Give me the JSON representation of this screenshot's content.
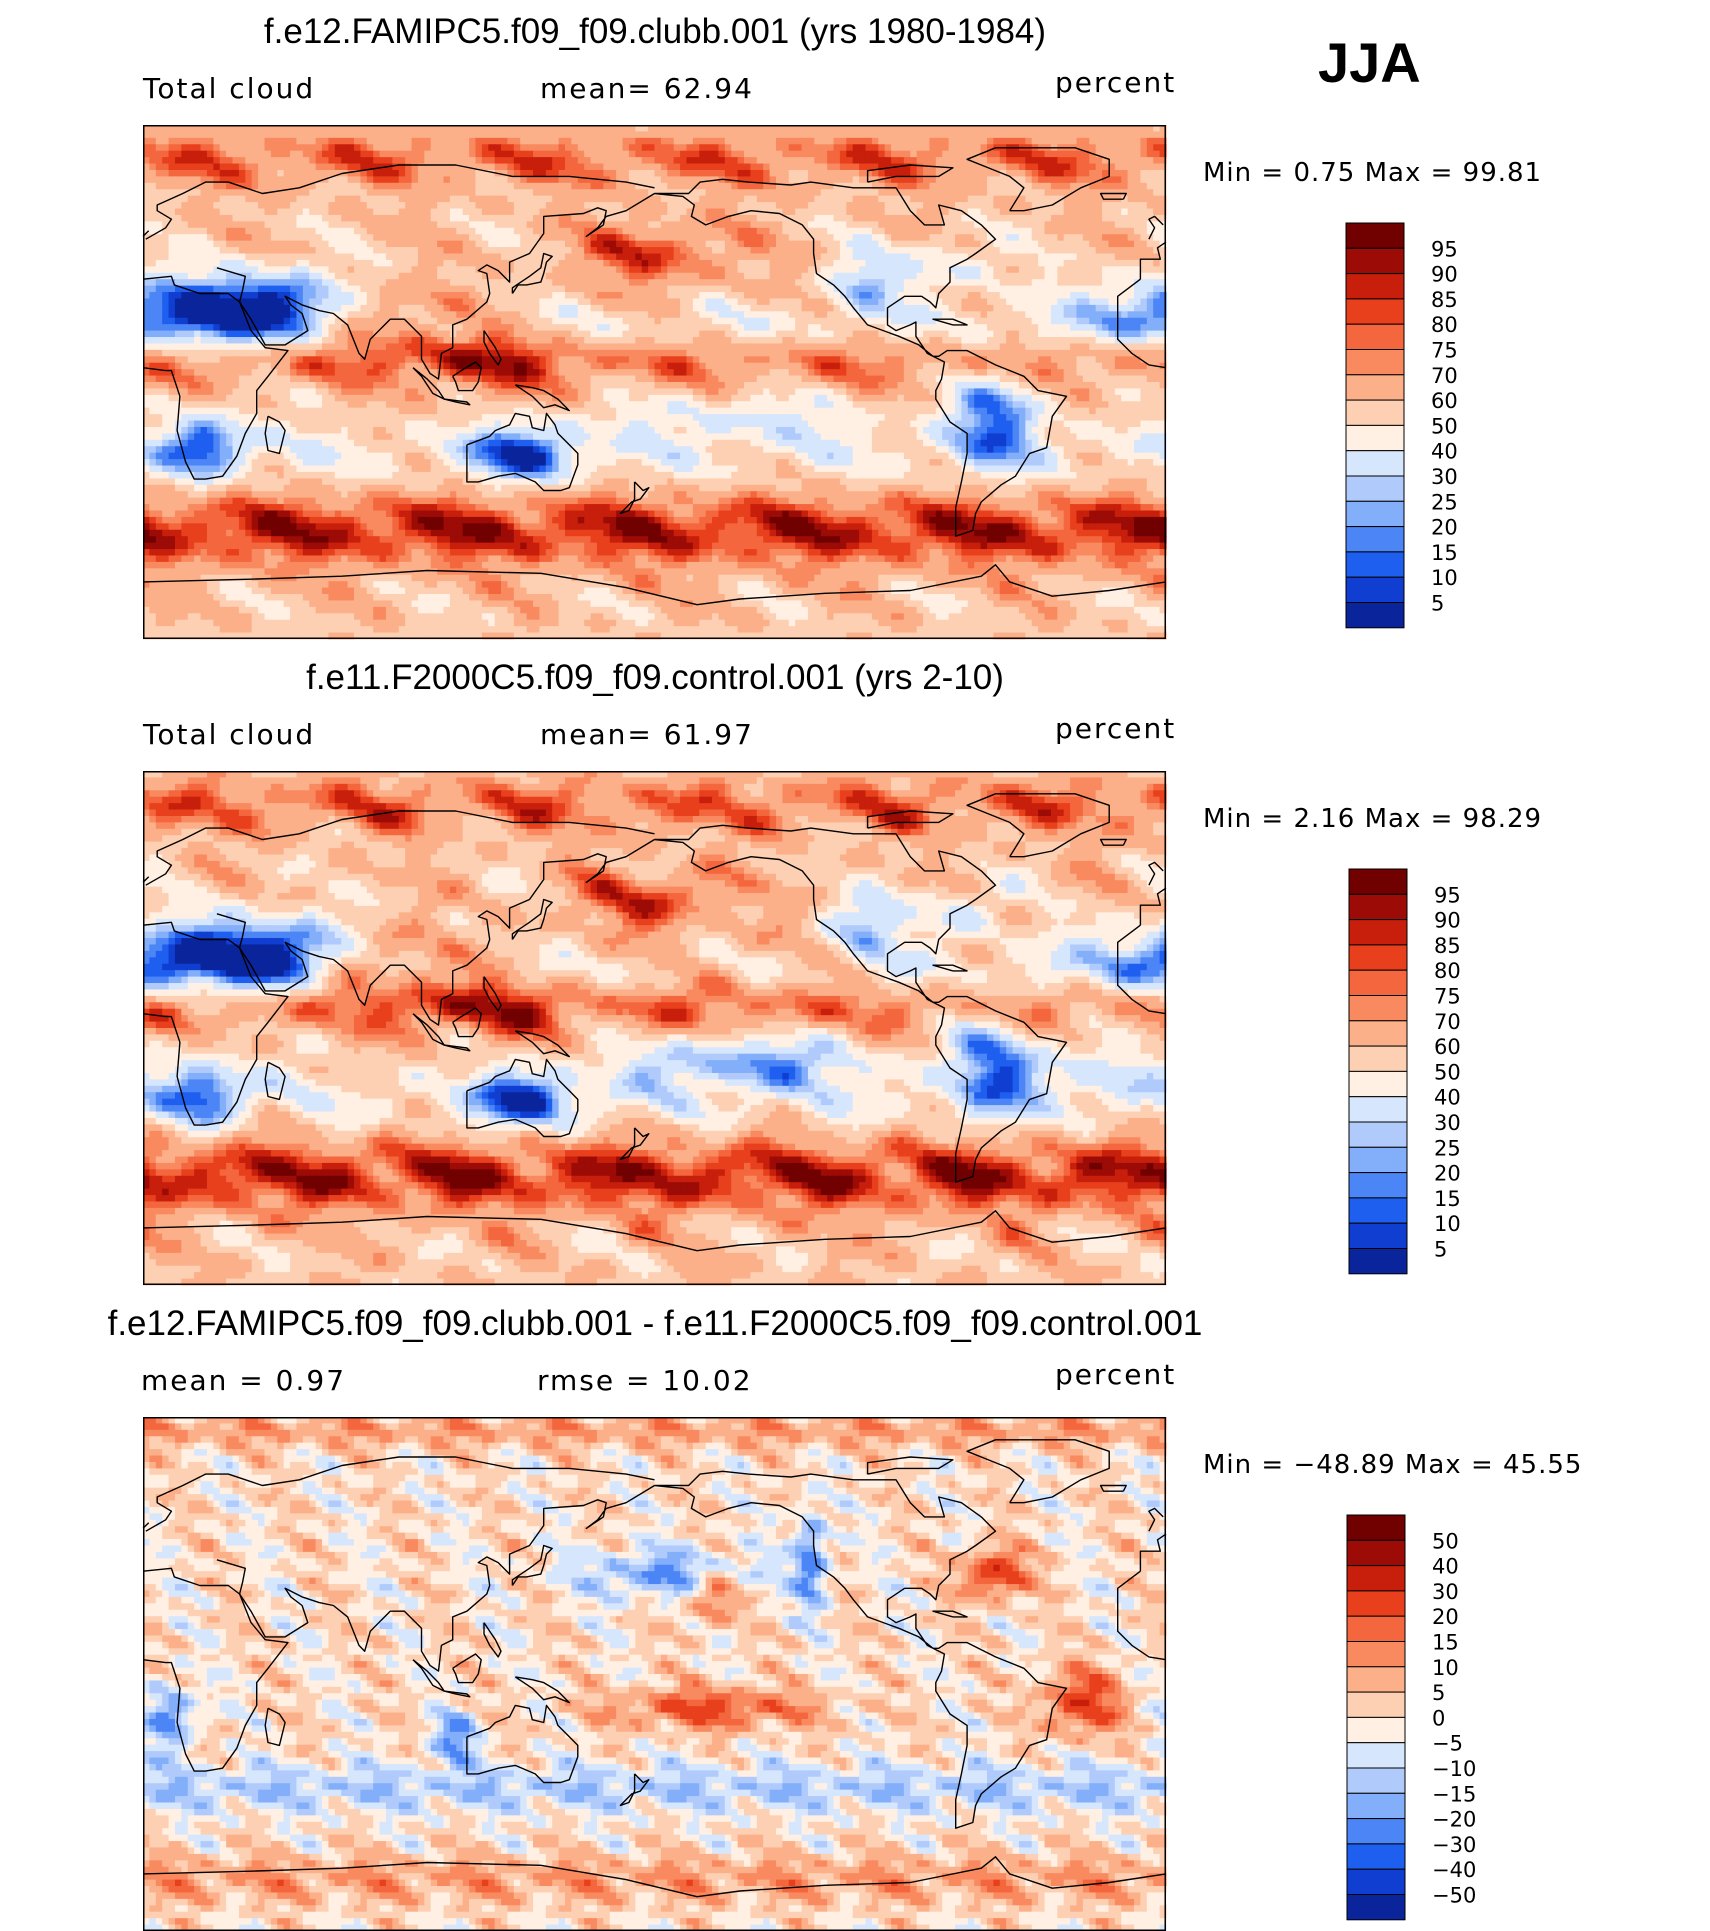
{
  "season": "JJA",
  "colors": {
    "seq": [
      "#00006a",
      "#0a249c",
      "#0f3ed1",
      "#1e5ff0",
      "#4c85f5",
      "#82aefa",
      "#b0cbfb",
      "#d6e6fd",
      "#fff0e3",
      "#fdd0b3",
      "#fcb08a",
      "#f98a60",
      "#f4663d",
      "#e8401c",
      "#c71f0b",
      "#9c0b06",
      "#710000"
    ],
    "coast": "#000000"
  },
  "panels": [
    {
      "title": "f.e12.FAMIPC5.f09_f09.clubb.001 (yrs 1980-1984)",
      "left_label": "Total cloud",
      "center_label": "mean=   62.94",
      "right_label": "percent",
      "minmax_label": "Min =     0.75  Max =    99.81",
      "field": "ctrl",
      "colorbar": [
        "95",
        "90",
        "85",
        "80",
        "75",
        "70",
        "60",
        "50",
        "40",
        "30",
        "25",
        "20",
        "15",
        "10",
        "5"
      ]
    },
    {
      "title": "f.e11.F2000C5.f09_f09.control.001 (yrs 2-10)",
      "left_label": "Total cloud",
      "center_label": "mean=   61.97",
      "right_label": "percent",
      "minmax_label": "Min =     2.16  Max =    98.29",
      "field": "test",
      "colorbar": [
        "95",
        "90",
        "85",
        "80",
        "75",
        "70",
        "60",
        "50",
        "40",
        "30",
        "25",
        "20",
        "15",
        "10",
        "5"
      ]
    },
    {
      "title": "f.e12.FAMIPC5.f09_f09.clubb.001 - f.e11.F2000C5.f09_f09.control.001",
      "left_label": "mean =    0.97",
      "center_label": "rmse =    10.02",
      "right_label": "percent",
      "minmax_label": "Min = −48.89  Max =    45.55",
      "field": "diff",
      "colorbar": [
        "50",
        "40",
        "30",
        "20",
        "15",
        "10",
        "5",
        "0",
        "−5",
        "−10",
        "−15",
        "−20",
        "−30",
        "−40",
        "−50"
      ]
    }
  ],
  "chart_data": [
    {
      "type": "heatmap",
      "title": "f.e12.FAMIPC5.f09_f09.clubb.001 (yrs 1980-1984)",
      "variable": "Total cloud",
      "units": "percent",
      "mean": 62.94,
      "min": 0.75,
      "max": 99.81,
      "levels": [
        5,
        10,
        15,
        20,
        25,
        30,
        40,
        50,
        60,
        70,
        75,
        80,
        85,
        90,
        95
      ],
      "x": "longitude 0–360",
      "y": "latitude -90–90"
    },
    {
      "type": "heatmap",
      "title": "f.e11.F2000C5.f09_f09.control.001 (yrs 2-10)",
      "variable": "Total cloud",
      "units": "percent",
      "mean": 61.97,
      "min": 2.16,
      "max": 98.29,
      "levels": [
        5,
        10,
        15,
        20,
        25,
        30,
        40,
        50,
        60,
        70,
        75,
        80,
        85,
        90,
        95
      ],
      "x": "longitude 0–360",
      "y": "latitude -90–90"
    },
    {
      "type": "heatmap",
      "title": "f.e12.FAMIPC5.f09_f09.clubb.001 - f.e11.F2000C5.f09_f09.control.001",
      "units": "percent",
      "mean": 0.97,
      "rmse": 10.02,
      "min": -48.89,
      "max": 45.55,
      "levels": [
        -50,
        -40,
        -30,
        -20,
        -15,
        -10,
        -5,
        0,
        5,
        10,
        15,
        20,
        30,
        40,
        50
      ],
      "x": "longitude 0–360",
      "y": "latitude -90–90"
    }
  ]
}
